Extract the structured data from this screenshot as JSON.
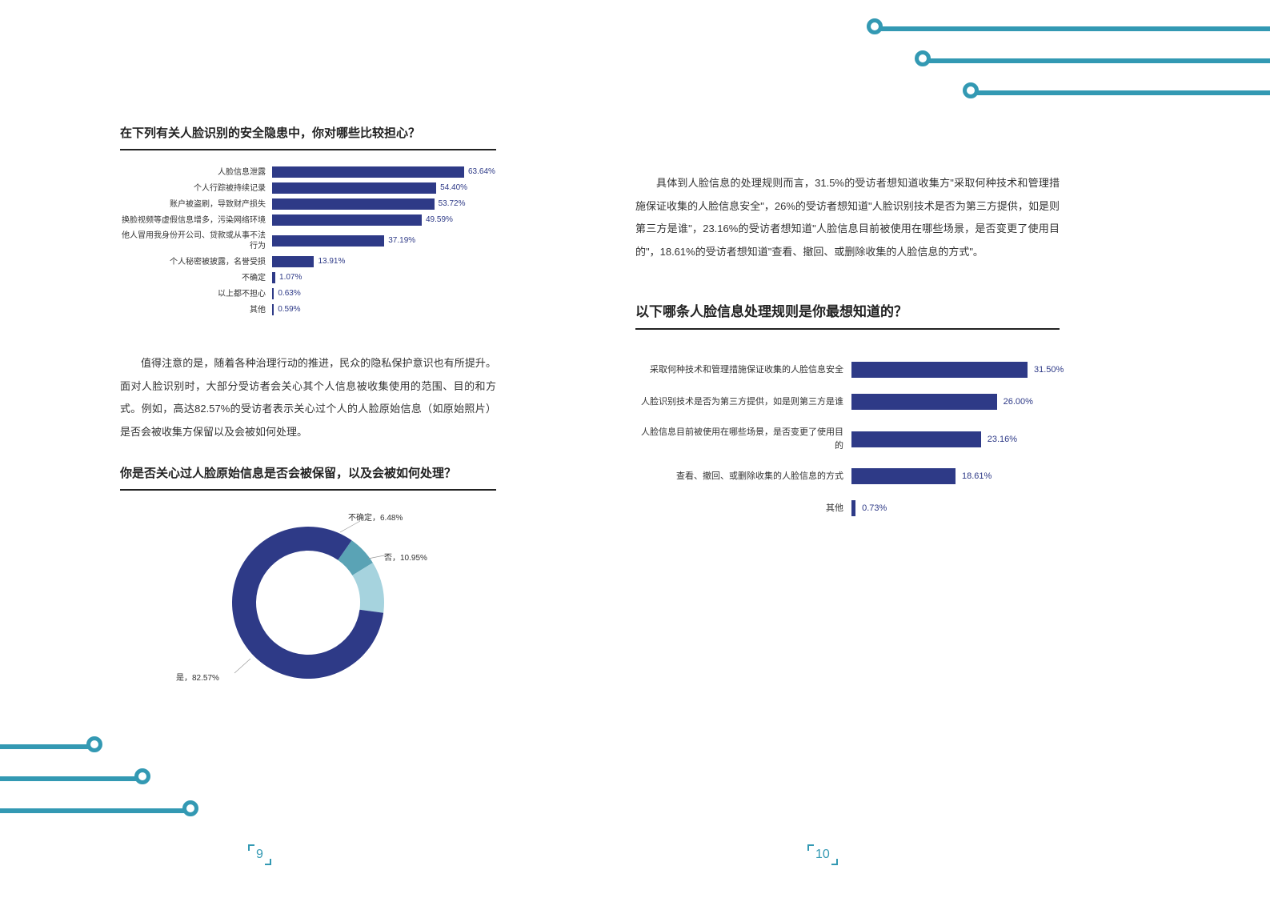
{
  "accent_color": "#3399b3",
  "bar_color": "#2e3a87",
  "donut_colors": {
    "yes": "#2e3a87",
    "no": "#a6d3de",
    "unsure": "#5aa3b5"
  },
  "chart1": {
    "title": "在下列有关人脸识别的安全隐患中，你对哪些比较担心？",
    "max": 63.64,
    "items": [
      {
        "label": "人脸信息泄露",
        "value": 63.64
      },
      {
        "label": "个人行踪被持续记录",
        "value": 54.4
      },
      {
        "label": "账户被盗刷，导致财产损失",
        "value": 53.72
      },
      {
        "label": "换脸视频等虚假信息增多，污染网络环境",
        "value": 49.59
      },
      {
        "label": "他人冒用我身份开公司、贷款或从事不法行为",
        "value": 37.19
      },
      {
        "label": "个人秘密被披露，名誉受损",
        "value": 13.91
      },
      {
        "label": "不确定",
        "value": 1.07
      },
      {
        "label": "以上都不担心",
        "value": 0.63
      },
      {
        "label": "其他",
        "value": 0.59
      }
    ]
  },
  "para1": "值得注意的是，随着各种治理行动的推进，民众的隐私保护意识也有所提升。面对人脸识别时，大部分受访者会关心其个人信息被收集使用的范围、目的和方式。例如，高达82.57%的受访者表示关心过个人的人脸原始信息（如原始照片）是否会被收集方保留以及会被如何处理。",
  "chart2": {
    "title": "你是否关心过人脸原始信息是否会被保留，以及会被如何处理？",
    "slices": [
      {
        "key": "yes",
        "label": "是，82.57%",
        "value": 82.57
      },
      {
        "key": "no",
        "label": "否，10.95%",
        "value": 10.95
      },
      {
        "key": "unsure",
        "label": "不确定，6.48%",
        "value": 6.48
      }
    ]
  },
  "para2": "具体到人脸信息的处理规则而言，31.5%的受访者想知道收集方\"采取何种技术和管理措施保证收集的人脸信息安全\"，26%的受访者想知道\"人脸识别技术是否为第三方提供，如是则第三方是谁\"，23.16%的受访者想知道\"人脸信息目前被使用在哪些场景，是否变更了使用目的\"，18.61%的受访者想知道\"查看、撤回、或删除收集的人脸信息的方式\"。",
  "chart3": {
    "title": "以下哪条人脸信息处理规则是你最想知道的？",
    "max": 31.5,
    "items": [
      {
        "label": "采取何种技术和管理措施保证收集的人脸信息安全",
        "value": 31.5
      },
      {
        "label": "人脸识别技术是否为第三方提供，如是则第三方是谁",
        "value": 26.0
      },
      {
        "label": "人脸信息目前被使用在哪些场景，是否变更了使用目的",
        "value": 23.16
      },
      {
        "label": "查看、撤回、或删除收集的人脸信息的方式",
        "value": 18.61
      },
      {
        "label": "其他",
        "value": 0.73
      }
    ]
  },
  "page_left_num": "9",
  "page_right_num": "10"
}
